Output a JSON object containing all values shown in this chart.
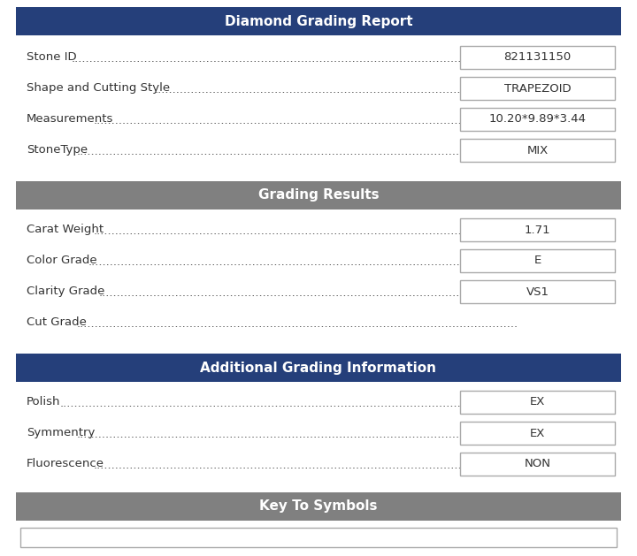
{
  "title": "Diamond Grading Report",
  "section2_title": "Grading Results",
  "section3_title": "Additional Grading Information",
  "section4_title": "Key To Symbols",
  "header_color_dark": "#253f7a",
  "header_color_gray": "#808080",
  "bg_color": "#ffffff",
  "white": "#ffffff",
  "box_border": "#aaaaaa",
  "text_color": "#333333",
  "header_text_color": "#ffffff",
  "section1_rows": [
    {
      "label": "Stone ID",
      "value": "821131150",
      "has_box": true
    },
    {
      "label": "Shape and Cutting Style",
      "value": "TRAPEZOID",
      "has_box": true
    },
    {
      "label": "Measurements",
      "value": "10.20*9.89*3.44",
      "has_box": true
    },
    {
      "label": "StoneType",
      "value": "MIX",
      "has_box": true
    }
  ],
  "section2_rows": [
    {
      "label": "Carat Weight",
      "value": "1.71",
      "has_box": true
    },
    {
      "label": "Color Grade",
      "value": "E",
      "has_box": true
    },
    {
      "label": "Clarity Grade",
      "value": "VS1",
      "has_box": true
    },
    {
      "label": "Cut Grade",
      "value": null,
      "has_box": false
    }
  ],
  "section3_rows": [
    {
      "label": "Polish",
      "value": "EX",
      "has_box": true
    },
    {
      "label": "Symmentry",
      "value": "EX",
      "has_box": true
    },
    {
      "label": "Fluorescence",
      "value": "NON",
      "has_box": true
    }
  ],
  "fig_width": 7.2,
  "fig_height": 6.29,
  "dpi": 100
}
